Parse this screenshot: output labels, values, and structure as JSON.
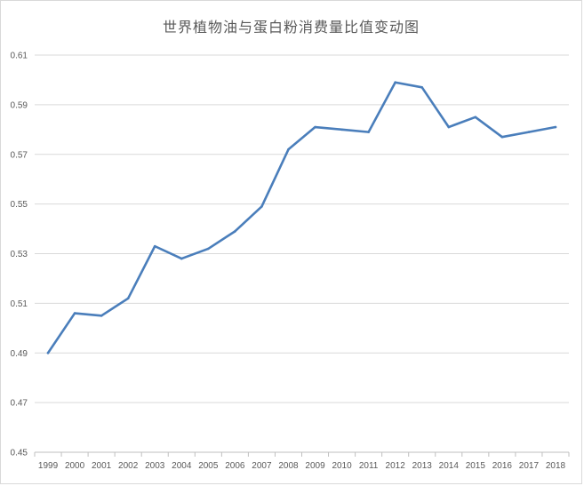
{
  "chart_data": {
    "type": "line",
    "title": "世界植物油与蛋白粉消费量比值变动图",
    "xlabel": "",
    "ylabel": "",
    "categories": [
      "1999",
      "2000",
      "2001",
      "2002",
      "2003",
      "2004",
      "2005",
      "2006",
      "2007",
      "2008",
      "2009",
      "2010",
      "2011",
      "2012",
      "2013",
      "2014",
      "2015",
      "2016",
      "2017",
      "2018"
    ],
    "series": [
      {
        "values": [
          0.49,
          0.506,
          0.505,
          0.512,
          0.533,
          0.528,
          0.532,
          0.539,
          0.549,
          0.572,
          0.581,
          0.58,
          0.579,
          0.599,
          0.597,
          0.581,
          0.585,
          0.577,
          0.579,
          0.581
        ],
        "color": "#4a7ebb"
      }
    ],
    "ylim": [
      0.45,
      0.61
    ],
    "yticks": [
      "0.45",
      "0.47",
      "0.49",
      "0.51",
      "0.53",
      "0.55",
      "0.57",
      "0.59",
      "0.61"
    ],
    "grid": "horizontal",
    "legend": "none"
  }
}
